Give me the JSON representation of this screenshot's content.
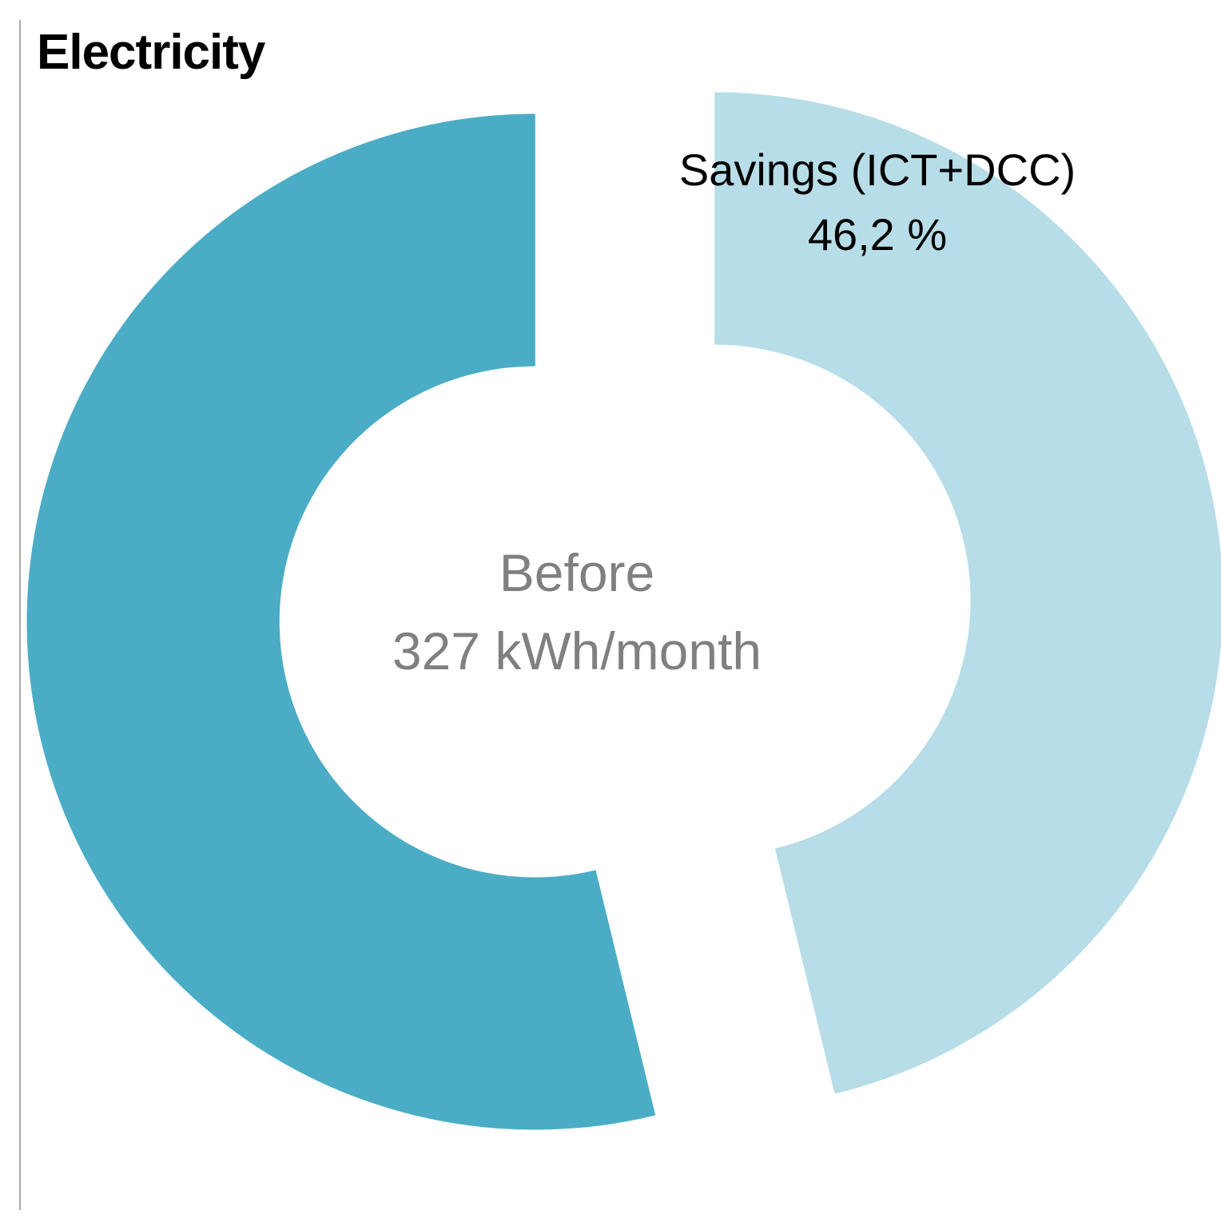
{
  "chart_data": {
    "type": "pie",
    "subtype": "doughnut",
    "title": "Electricity",
    "direction": "clockwise",
    "start_angle_deg": 0,
    "exploded": true,
    "legend": "none",
    "slices": [
      {
        "name": "Savings (ICT+DCC)",
        "value_pct": 46.2,
        "color": "#B7DDE8",
        "data_label_lines": [
          "Savings (ICT+DCC)",
          "46,2 %"
        ]
      },
      {
        "name": "Before",
        "value_pct": 53.8,
        "color": "#4BACC6",
        "data_label_lines": []
      }
    ],
    "center_label_lines": [
      "Before",
      "327 kWh/month"
    ]
  },
  "colors": {
    "slice_label_text": "#000000",
    "center_text": "#808080",
    "border_line": "#A9A9A9",
    "background": "#FFFFFF"
  }
}
